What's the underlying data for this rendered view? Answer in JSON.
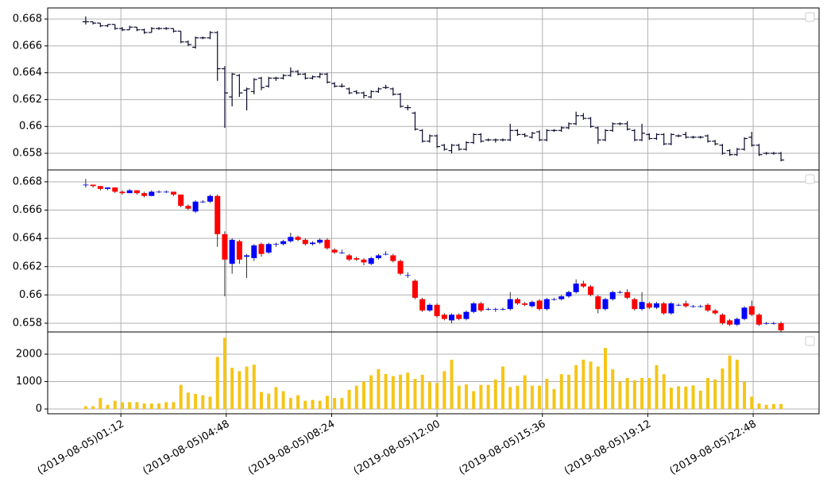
{
  "chart_data": {
    "type": "candlestick",
    "x": [
      "2019-08-05 00:00",
      "2019-08-05 00:15",
      "2019-08-05 00:30",
      "2019-08-05 00:45",
      "2019-08-05 01:00",
      "2019-08-05 01:15",
      "2019-08-05 01:30",
      "2019-08-05 01:45",
      "2019-08-05 02:00",
      "2019-08-05 02:15",
      "2019-08-05 02:30",
      "2019-08-05 02:45",
      "2019-08-05 03:00",
      "2019-08-05 03:15",
      "2019-08-05 03:30",
      "2019-08-05 03:45",
      "2019-08-05 04:00",
      "2019-08-05 04:15",
      "2019-08-05 04:30",
      "2019-08-05 04:45",
      "2019-08-05 05:00",
      "2019-08-05 05:15",
      "2019-08-05 05:30",
      "2019-08-05 05:45",
      "2019-08-05 06:00",
      "2019-08-05 06:15",
      "2019-08-05 06:30",
      "2019-08-05 06:45",
      "2019-08-05 07:00",
      "2019-08-05 07:15",
      "2019-08-05 07:30",
      "2019-08-05 07:45",
      "2019-08-05 08:00",
      "2019-08-05 08:15",
      "2019-08-05 08:30",
      "2019-08-05 08:45",
      "2019-08-05 09:00",
      "2019-08-05 09:15",
      "2019-08-05 09:30",
      "2019-08-05 09:45",
      "2019-08-05 10:00",
      "2019-08-05 10:15",
      "2019-08-05 10:30",
      "2019-08-05 10:45",
      "2019-08-05 11:00",
      "2019-08-05 11:15",
      "2019-08-05 11:30",
      "2019-08-05 11:45",
      "2019-08-05 12:00",
      "2019-08-05 12:15",
      "2019-08-05 12:30",
      "2019-08-05 12:45",
      "2019-08-05 13:00",
      "2019-08-05 13:15",
      "2019-08-05 13:30",
      "2019-08-05 13:45",
      "2019-08-05 14:00",
      "2019-08-05 14:15",
      "2019-08-05 14:30",
      "2019-08-05 14:45",
      "2019-08-05 15:00",
      "2019-08-05 15:15",
      "2019-08-05 15:30",
      "2019-08-05 15:45",
      "2019-08-05 16:00",
      "2019-08-05 16:15",
      "2019-08-05 16:30",
      "2019-08-05 16:45",
      "2019-08-05 17:00",
      "2019-08-05 17:15",
      "2019-08-05 17:30",
      "2019-08-05 17:45",
      "2019-08-05 18:00",
      "2019-08-05 18:15",
      "2019-08-05 18:30",
      "2019-08-05 18:45",
      "2019-08-05 19:00",
      "2019-08-05 19:15",
      "2019-08-05 19:30",
      "2019-08-05 19:45",
      "2019-08-05 20:00",
      "2019-08-05 20:15",
      "2019-08-05 20:30",
      "2019-08-05 20:45",
      "2019-08-05 21:00",
      "2019-08-05 21:15",
      "2019-08-05 21:30",
      "2019-08-05 21:45",
      "2019-08-05 22:00",
      "2019-08-05 22:15",
      "2019-08-05 22:30",
      "2019-08-05 22:45",
      "2019-08-05 23:00",
      "2019-08-05 23:15",
      "2019-08-05 23:30",
      "2019-08-05 23:45"
    ],
    "open": [
      0.6678,
      0.6678,
      0.6677,
      0.6675,
      0.6676,
      0.6673,
      0.6672,
      0.6674,
      0.6672,
      0.667,
      0.6673,
      0.6673,
      0.6673,
      0.6671,
      0.6663,
      0.6659,
      0.6666,
      0.6666,
      0.667,
      0.6643,
      0.6622,
      0.6638,
      0.6627,
      0.6626,
      0.6636,
      0.663,
      0.6636,
      0.6636,
      0.6638,
      0.6641,
      0.6639,
      0.6636,
      0.6637,
      0.6639,
      0.6632,
      0.663,
      0.6628,
      0.6626,
      0.6625,
      0.6622,
      0.6626,
      0.6629,
      0.6628,
      0.6624,
      0.6614,
      0.661,
      0.6597,
      0.6589,
      0.6593,
      0.6586,
      0.6582,
      0.6586,
      0.6583,
      0.6588,
      0.6594,
      0.659,
      0.659,
      0.659,
      0.659,
      0.6597,
      0.6594,
      0.6592,
      0.6596,
      0.659,
      0.6597,
      0.6597,
      0.6599,
      0.6602,
      0.6608,
      0.6606,
      0.6599,
      0.659,
      0.6597,
      0.6602,
      0.6602,
      0.6597,
      0.659,
      0.6594,
      0.6591,
      0.6594,
      0.6587,
      0.6593,
      0.6594,
      0.6592,
      0.6592,
      0.6593,
      0.6589,
      0.6586,
      0.6582,
      0.6579,
      0.6583,
      0.6592,
      0.6586,
      0.658,
      0.658,
      0.658
    ],
    "high": [
      0.6682,
      0.6678,
      0.6677,
      0.6676,
      0.6676,
      0.6674,
      0.6675,
      0.6674,
      0.6673,
      0.6674,
      0.6674,
      0.6674,
      0.6673,
      0.6671,
      0.6664,
      0.6667,
      0.6667,
      0.6671,
      0.6671,
      0.6645,
      0.664,
      0.6639,
      0.6629,
      0.6636,
      0.6637,
      0.6637,
      0.6637,
      0.6639,
      0.6644,
      0.6642,
      0.664,
      0.6638,
      0.664,
      0.664,
      0.6633,
      0.6632,
      0.6629,
      0.6627,
      0.6626,
      0.6627,
      0.6629,
      0.6631,
      0.6629,
      0.6625,
      0.6616,
      0.6611,
      0.6598,
      0.6594,
      0.6594,
      0.6587,
      0.6587,
      0.6587,
      0.6589,
      0.6595,
      0.6595,
      0.6591,
      0.6591,
      0.6591,
      0.6602,
      0.6598,
      0.6595,
      0.6596,
      0.6597,
      0.6598,
      0.6598,
      0.66,
      0.6603,
      0.6611,
      0.661,
      0.6607,
      0.66,
      0.6598,
      0.6603,
      0.6603,
      0.6604,
      0.6598,
      0.6602,
      0.6595,
      0.6595,
      0.6595,
      0.6595,
      0.6594,
      0.6596,
      0.6593,
      0.6593,
      0.6594,
      0.659,
      0.6587,
      0.6583,
      0.6584,
      0.6592,
      0.6596,
      0.6587,
      0.6581,
      0.6581,
      0.6581
    ],
    "low": [
      0.6676,
      0.6676,
      0.6674,
      0.6674,
      0.6672,
      0.6671,
      0.6672,
      0.6671,
      0.6669,
      0.667,
      0.6672,
      0.6672,
      0.667,
      0.6662,
      0.666,
      0.6658,
      0.6665,
      0.6665,
      0.6634,
      0.6599,
      0.6615,
      0.6622,
      0.6612,
      0.6624,
      0.6627,
      0.6629,
      0.6634,
      0.6635,
      0.6637,
      0.6638,
      0.6635,
      0.6635,
      0.6636,
      0.6632,
      0.6629,
      0.6629,
      0.6624,
      0.6624,
      0.6621,
      0.6621,
      0.6625,
      0.6628,
      0.6623,
      0.6614,
      0.6612,
      0.6597,
      0.6588,
      0.6588,
      0.6584,
      0.6582,
      0.658,
      0.6582,
      0.6582,
      0.6587,
      0.6588,
      0.6589,
      0.6588,
      0.6589,
      0.6589,
      0.6593,
      0.6592,
      0.6591,
      0.6589,
      0.6589,
      0.6596,
      0.6596,
      0.6598,
      0.6601,
      0.6605,
      0.6599,
      0.6587,
      0.6589,
      0.6596,
      0.6601,
      0.6597,
      0.6589,
      0.6589,
      0.659,
      0.659,
      0.6586,
      0.6586,
      0.6592,
      0.6591,
      0.6591,
      0.6591,
      0.6588,
      0.6586,
      0.6579,
      0.6578,
      0.6578,
      0.6582,
      0.6585,
      0.6578,
      0.6579,
      0.6579,
      0.6574
    ],
    "close": [
      0.6678,
      0.6677,
      0.6675,
      0.6676,
      0.6673,
      0.6672,
      0.6674,
      0.6672,
      0.667,
      0.6673,
      0.6673,
      0.6673,
      0.6671,
      0.6663,
      0.6661,
      0.6666,
      0.6666,
      0.667,
      0.6643,
      0.6625,
      0.6639,
      0.6625,
      0.6628,
      0.6635,
      0.6629,
      0.6636,
      0.6636,
      0.6638,
      0.6641,
      0.6639,
      0.6636,
      0.6637,
      0.6639,
      0.6633,
      0.663,
      0.663,
      0.6625,
      0.6625,
      0.6623,
      0.6626,
      0.6628,
      0.6629,
      0.6624,
      0.6615,
      0.6614,
      0.6598,
      0.6589,
      0.6593,
      0.6585,
      0.6583,
      0.6586,
      0.6583,
      0.6588,
      0.6594,
      0.6589,
      0.659,
      0.659,
      0.659,
      0.6597,
      0.6594,
      0.6593,
      0.6595,
      0.659,
      0.6597,
      0.6597,
      0.6599,
      0.6602,
      0.6608,
      0.6606,
      0.66,
      0.659,
      0.6597,
      0.6602,
      0.6602,
      0.6598,
      0.659,
      0.6595,
      0.6591,
      0.6594,
      0.6587,
      0.6594,
      0.6593,
      0.6592,
      0.6592,
      0.6592,
      0.6589,
      0.6587,
      0.658,
      0.6579,
      0.6583,
      0.6591,
      0.6586,
      0.6579,
      0.658,
      0.658,
      0.6575
    ],
    "volume": [
      100,
      100,
      400,
      150,
      300,
      250,
      250,
      250,
      200,
      200,
      200,
      250,
      250,
      880,
      600,
      550,
      500,
      450,
      1900,
      2600,
      1500,
      1380,
      1550,
      1620,
      620,
      560,
      800,
      650,
      400,
      500,
      300,
      330,
      300,
      480,
      400,
      400,
      700,
      850,
      1000,
      1230,
      1450,
      1280,
      1200,
      1250,
      1330,
      1100,
      1250,
      980,
      950,
      1380,
      1800,
      850,
      900,
      650,
      880,
      880,
      1080,
      1550,
      800,
      850,
      1230,
      850,
      850,
      1100,
      730,
      1270,
      1250,
      1600,
      1800,
      1730,
      1550,
      2230,
      1450,
      1000,
      1130,
      1050,
      1130,
      1130,
      1600,
      1270,
      780,
      830,
      820,
      860,
      670,
      1130,
      1080,
      1480,
      1950,
      1800,
      1000,
      450,
      200,
      150,
      180,
      180
    ],
    "xlim": [
      "2019-08-04 22:42",
      "2019-08-06 01:03"
    ],
    "xticks": [
      {
        "value": "2019-08-05 01:12",
        "label": "(2019-08-05)01:12"
      },
      {
        "value": "2019-08-05 04:48",
        "label": "(2019-08-05)04:48"
      },
      {
        "value": "2019-08-05 08:24",
        "label": "(2019-08-05)08:24"
      },
      {
        "value": "2019-08-05 12:00",
        "label": "(2019-08-05)12:00"
      },
      {
        "value": "2019-08-05 15:36",
        "label": "(2019-08-05)15:36"
      },
      {
        "value": "2019-08-05 19:12",
        "label": "(2019-08-05)19:12"
      },
      {
        "value": "2019-08-05 22:48",
        "label": "(2019-08-05)22:48"
      }
    ],
    "grid": true,
    "panels": [
      {
        "type": "ohlc",
        "color": "#0b0b30",
        "ylim": [
          0.65676,
          0.66883
        ],
        "yticks": [
          0.658,
          0.66,
          0.662,
          0.664,
          0.666,
          0.668
        ]
      },
      {
        "type": "candlestick",
        "up_color": "#0000ff",
        "down_color": "#ff0000",
        "ylim": [
          0.65738,
          0.66884
        ],
        "yticks": [
          0.658,
          0.66,
          0.662,
          0.664,
          0.666,
          0.668
        ]
      },
      {
        "type": "bar",
        "series": "volume",
        "color": "#f5c518",
        "ylim": [
          -174,
          2812
        ],
        "yticks": [
          0,
          1000,
          2000
        ]
      }
    ]
  }
}
